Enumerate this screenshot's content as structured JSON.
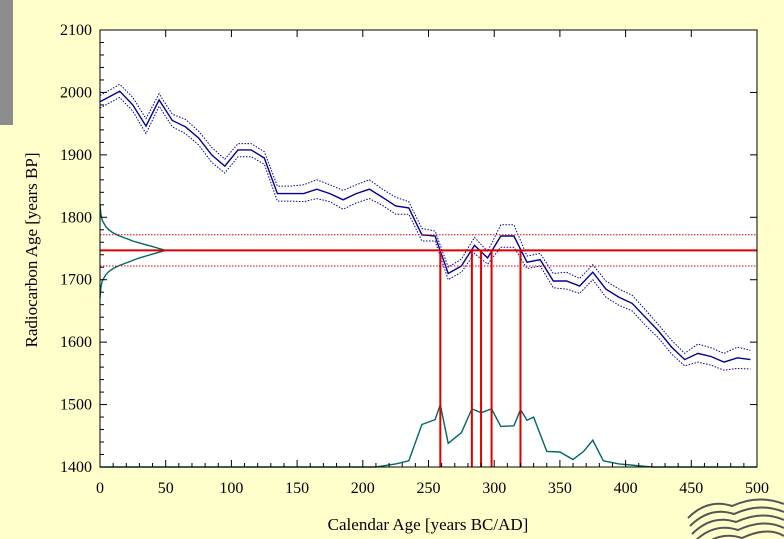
{
  "colors": {
    "background": "#ffffcc",
    "plot_background": "#ffffff",
    "calibration": "#000099",
    "range_lines": "#dd0000",
    "distribution": "#006666",
    "side_strip": "#8c8c8c"
  },
  "chart_data": {
    "type": "line",
    "title": "",
    "xlabel": "Calendar Age [years BC/AD]",
    "ylabel": "Radiocarbon Age [years BP]",
    "xlim": [
      0,
      500
    ],
    "ylim": [
      1400,
      2100
    ],
    "xticks": [
      0,
      50,
      100,
      150,
      200,
      250,
      300,
      350,
      400,
      450,
      500
    ],
    "yticks": [
      1400,
      1500,
      1600,
      1700,
      1800,
      1900,
      2000,
      2100
    ],
    "grid": false,
    "series": [
      {
        "role": "calibration-curve",
        "style": "solid",
        "x": [
          0,
          15,
          25,
          35,
          45,
          55,
          65,
          75,
          85,
          95,
          105,
          115,
          125,
          135,
          145,
          155,
          165,
          175,
          185,
          195,
          205,
          215,
          225,
          235,
          245,
          255,
          265,
          275,
          285,
          295,
          305,
          315,
          325,
          335,
          345,
          355,
          365,
          375,
          385,
          395,
          405,
          415,
          425,
          435,
          445,
          455,
          465,
          475,
          485,
          495
        ],
        "y": [
          1985,
          2002,
          1980,
          1946,
          1988,
          1955,
          1945,
          1927,
          1900,
          1882,
          1908,
          1908,
          1895,
          1838,
          1838,
          1838,
          1845,
          1838,
          1828,
          1838,
          1845,
          1832,
          1818,
          1815,
          1772,
          1770,
          1710,
          1722,
          1755,
          1735,
          1770,
          1770,
          1728,
          1732,
          1698,
          1698,
          1690,
          1712,
          1685,
          1672,
          1662,
          1640,
          1618,
          1592,
          1572,
          1582,
          1577,
          1568,
          1575,
          1572
        ]
      },
      {
        "role": "calibration-upper",
        "style": "dotted",
        "x": [
          0,
          15,
          25,
          35,
          45,
          55,
          65,
          75,
          85,
          95,
          105,
          115,
          125,
          135,
          145,
          155,
          165,
          175,
          185,
          195,
          205,
          215,
          225,
          235,
          245,
          255,
          265,
          275,
          285,
          295,
          305,
          315,
          325,
          335,
          345,
          355,
          365,
          375,
          385,
          395,
          405,
          415,
          425,
          435,
          445,
          455,
          465,
          475,
          485,
          495
        ],
        "y": [
          1995,
          2013,
          1992,
          1958,
          1998,
          1965,
          1957,
          1938,
          1912,
          1893,
          1918,
          1918,
          1905,
          1850,
          1850,
          1852,
          1860,
          1852,
          1843,
          1852,
          1860,
          1845,
          1832,
          1825,
          1782,
          1778,
          1720,
          1733,
          1768,
          1745,
          1788,
          1788,
          1738,
          1742,
          1710,
          1712,
          1702,
          1724,
          1698,
          1685,
          1675,
          1652,
          1628,
          1603,
          1582,
          1597,
          1591,
          1582,
          1592,
          1587
        ]
      },
      {
        "role": "calibration-lower",
        "style": "dotted",
        "x": [
          0,
          15,
          25,
          35,
          45,
          55,
          65,
          75,
          85,
          95,
          105,
          115,
          125,
          135,
          145,
          155,
          165,
          175,
          185,
          195,
          205,
          215,
          225,
          235,
          245,
          255,
          265,
          275,
          285,
          295,
          305,
          315,
          325,
          335,
          345,
          355,
          365,
          375,
          385,
          395,
          405,
          415,
          425,
          435,
          445,
          455,
          465,
          475,
          485,
          495
        ],
        "y": [
          1975,
          1992,
          1970,
          1934,
          1978,
          1945,
          1934,
          1916,
          1888,
          1871,
          1897,
          1897,
          1885,
          1826,
          1826,
          1825,
          1830,
          1825,
          1813,
          1823,
          1830,
          1819,
          1805,
          1805,
          1762,
          1762,
          1700,
          1712,
          1742,
          1725,
          1752,
          1752,
          1718,
          1722,
          1687,
          1685,
          1678,
          1700,
          1672,
          1659,
          1650,
          1627,
          1607,
          1581,
          1562,
          1568,
          1563,
          1555,
          1558,
          1557
        ]
      },
      {
        "role": "calibrated-distribution",
        "style": "solid",
        "x": [
          0,
          130,
          180,
          210,
          225,
          235,
          245,
          255,
          259,
          265,
          275,
          283,
          290,
          298,
          305,
          315,
          320,
          325,
          330,
          340,
          350,
          360,
          368,
          375,
          383,
          395,
          420,
          430,
          500
        ],
        "y": [
          1400,
          1400,
          1400,
          1400,
          1405,
          1410,
          1468,
          1476,
          1500,
          1438,
          1455,
          1493,
          1487,
          1493,
          1465,
          1466,
          1492,
          1475,
          1480,
          1425,
          1424,
          1412,
          1425,
          1443,
          1410,
          1405,
          1400,
          1400,
          1400
        ]
      },
      {
        "role": "measured-date-distribution",
        "style": "solid",
        "x": [
          0,
          0.7,
          1.7,
          4.4,
          6.7,
          10,
          15,
          20,
          25,
          30,
          35,
          40,
          45,
          50,
          45,
          40,
          35,
          30,
          25,
          20,
          15,
          10,
          6.7,
          4.4,
          1.7,
          0.7,
          0
        ],
        "y": [
          1820,
          1805,
          1795,
          1785,
          1780,
          1775,
          1770,
          1766,
          1762,
          1759,
          1756,
          1753,
          1750,
          1747,
          1744,
          1741,
          1738,
          1735,
          1731,
          1727,
          1723,
          1718,
          1713,
          1708,
          1698,
          1688,
          1670
        ]
      }
    ],
    "measured_age": 1747,
    "sigma_band": [
      1772,
      1722
    ],
    "intercepts_x": [
      259,
      283,
      290,
      298,
      320
    ]
  }
}
